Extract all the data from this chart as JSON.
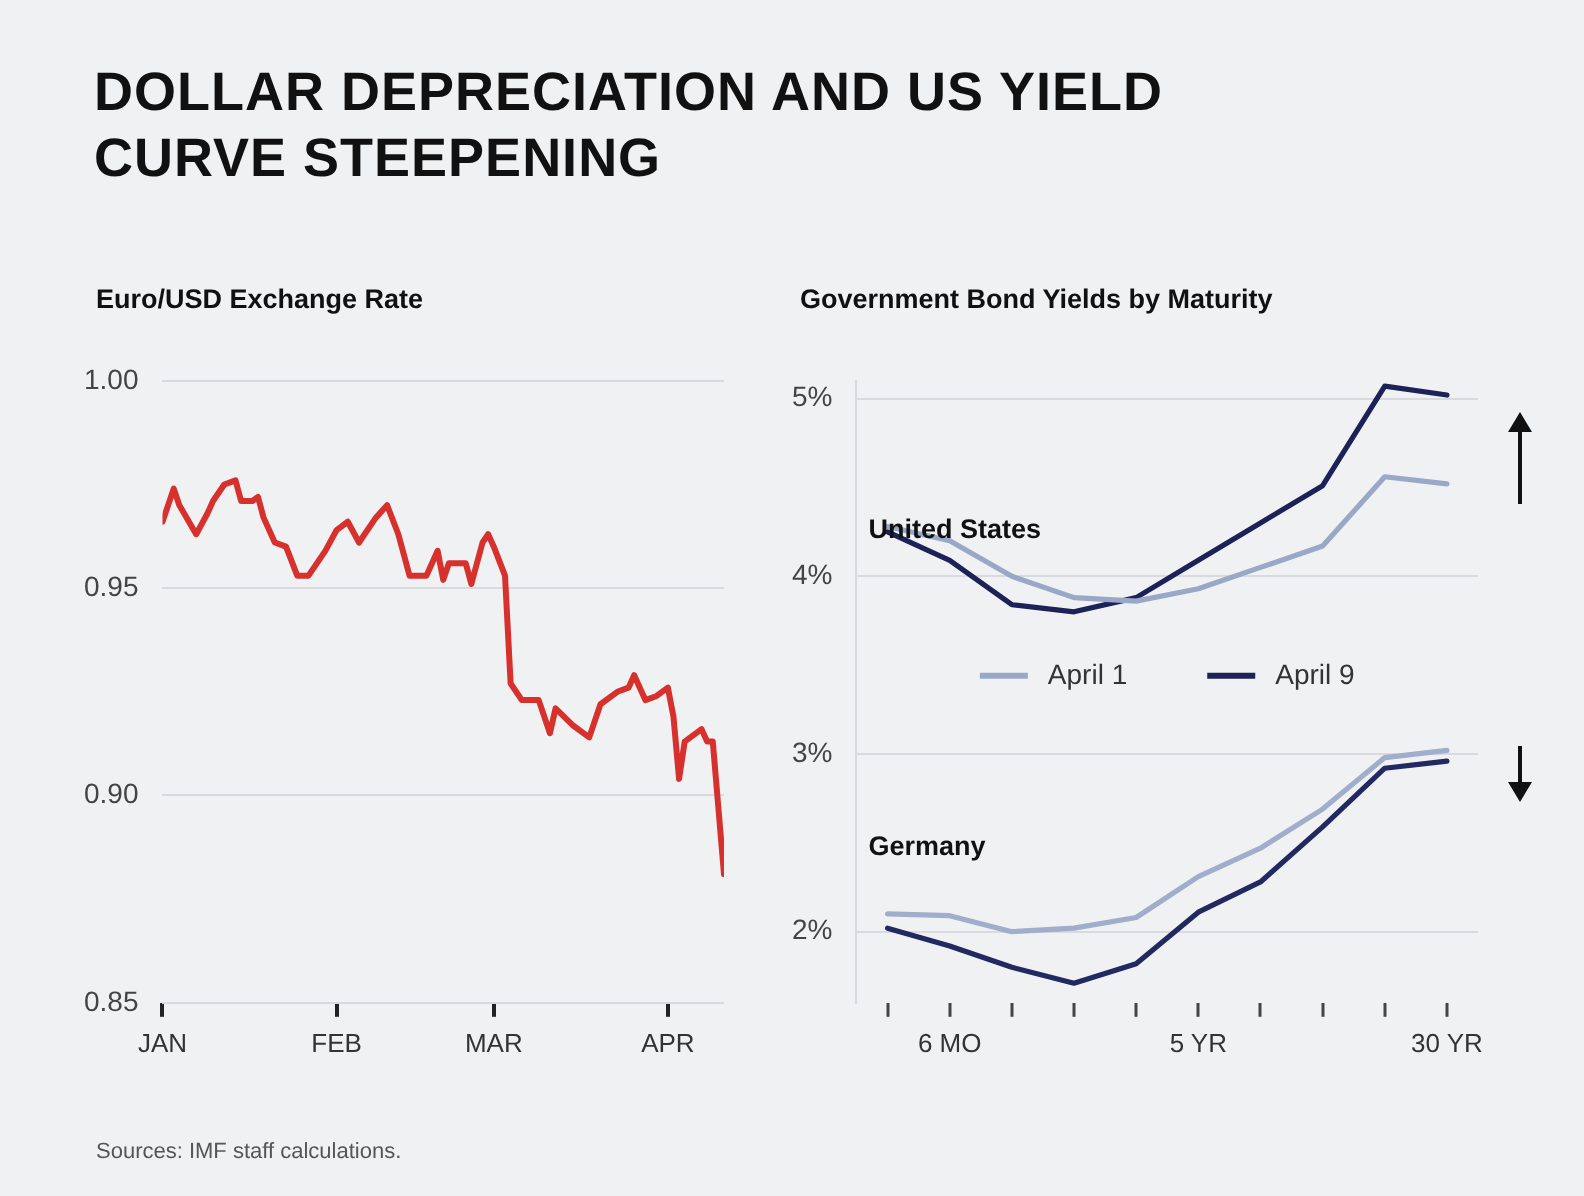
{
  "chart_data": [
    {
      "type": "line",
      "title": "DOLLAR DEPRECIATION AND US YIELD CURVE STEEPENING",
      "subtitle": "Euro/USD Exchange Rate",
      "x": [
        "--01-01",
        "--01-03",
        "--01-04",
        "--01-07",
        "--01-09",
        "--01-10",
        "--01-12",
        "--01-14",
        "--01-15",
        "--01-17",
        "--01-18",
        "--01-19",
        "--01-21",
        "--01-23",
        "--01-25",
        "--01-27",
        "--01-30",
        "--02-01",
        "--02-03",
        "--02-05",
        "--02-08",
        "--02-10",
        "--02-12",
        "--02-14",
        "--02-17",
        "--02-19",
        "--02-20",
        "--02-21",
        "--02-24",
        "--02-25",
        "--02-27",
        "--02-28",
        "--03-01",
        "--03-03",
        "--03-04",
        "--03-06",
        "--03-09",
        "--03-11",
        "--03-12",
        "--03-15",
        "--03-18",
        "--03-20",
        "--03-23",
        "--03-25",
        "--03-26",
        "--03-28",
        "--03-30",
        "--04-01",
        "--04-02",
        "--04-03",
        "--04-04",
        "--04-07",
        "--04-08",
        "--04-09",
        "--04-11"
      ],
      "values": [
        0.966,
        0.974,
        0.97,
        0.963,
        0.968,
        0.971,
        0.975,
        0.976,
        0.971,
        0.971,
        0.972,
        0.967,
        0.961,
        0.96,
        0.953,
        0.953,
        0.959,
        0.964,
        0.966,
        0.961,
        0.967,
        0.97,
        0.963,
        0.953,
        0.953,
        0.959,
        0.952,
        0.956,
        0.956,
        0.951,
        0.961,
        0.963,
        0.96,
        0.953,
        0.927,
        0.923,
        0.923,
        0.915,
        0.921,
        0.917,
        0.914,
        0.922,
        0.925,
        0.926,
        0.929,
        0.923,
        0.924,
        0.926,
        0.919,
        0.904,
        0.913,
        0.916,
        0.913,
        0.913,
        0.881
      ],
      "color": "#d7312e",
      "xlim": [
        "--01-01",
        "--04-11"
      ],
      "xticks": [
        {
          "value": "--01-01",
          "label": "JAN"
        },
        {
          "value": "--02-01",
          "label": "FEB"
        },
        {
          "value": "--03-01",
          "label": "MAR"
        },
        {
          "value": "--04-01",
          "label": "APR"
        }
      ],
      "ylim": [
        0.85,
        1.0
      ],
      "yticks": [
        {
          "value": 0.85,
          "label": "0.85"
        },
        {
          "value": 0.9,
          "label": "0.90"
        },
        {
          "value": 0.95,
          "label": "0.95"
        },
        {
          "value": 1,
          "label": "1.00"
        }
      ],
      "grid": "y",
      "marker": "none",
      "annotations": [
        "Sources: IMF staff calculations."
      ]
    },
    {
      "type": "line",
      "title": "Government Bond Yields by Maturity",
      "categories": [
        null,
        "6 MO",
        null,
        null,
        null,
        "5 YR",
        null,
        null,
        null,
        "30 YR"
      ],
      "series": [
        {
          "name": "April 1",
          "color": "#9aa8c8",
          "values": [
            4.28,
            4.2,
            4.0,
            3.88,
            3.86,
            3.93,
            4.05,
            4.17,
            4.56,
            4.52
          ]
        },
        {
          "name": "April 9",
          "color": "#1c2158",
          "values": [
            4.25,
            4.09,
            3.84,
            3.8,
            3.88,
            4.09,
            4.3,
            4.51,
            5.07,
            5.02
          ]
        },
        {
          "color": "#a0adcb",
          "values": [
            2.1,
            2.09,
            2.0,
            2.02,
            2.08,
            2.31,
            2.47,
            2.69,
            2.98,
            3.02
          ]
        },
        {
          "color": "#222860",
          "values": [
            2.02,
            1.92,
            1.8,
            1.71,
            1.82,
            2.11,
            2.28,
            2.59,
            2.92,
            2.96
          ]
        }
      ],
      "ylim": [
        1.6,
        5.1
      ],
      "yticks": [
        {
          "value": 2,
          "label": "2%"
        },
        {
          "value": 3,
          "label": "3%"
        },
        {
          "value": 4,
          "label": "4%"
        },
        {
          "value": 5,
          "label": "5%"
        }
      ],
      "grid": "y",
      "legend": "center",
      "marker": "none",
      "annotations": [
        "United States",
        "Germany"
      ]
    }
  ]
}
